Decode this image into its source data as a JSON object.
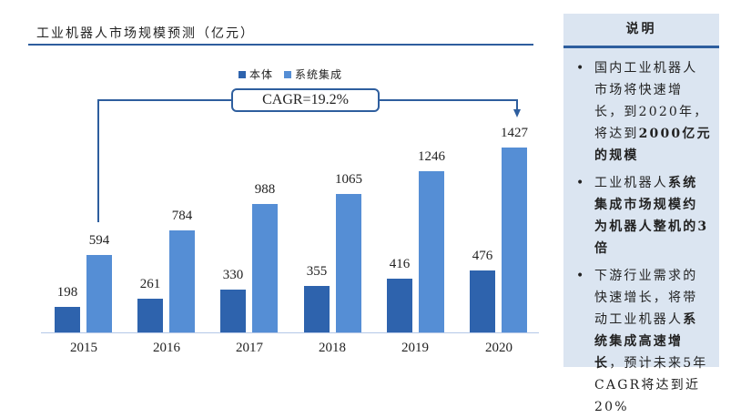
{
  "title": "工业机器人市场规模预测（亿元）",
  "legend": [
    {
      "label": "本体",
      "color": "#2e63ad"
    },
    {
      "label": "系统集成",
      "color": "#558ed5"
    }
  ],
  "cagr_label": "CAGR=19.2%",
  "panel": {
    "heading": "说明",
    "notes": [
      {
        "parts": [
          {
            "t": "国内工业机器人市场将快速增长，到2020年，将达到",
            "b": false
          },
          {
            "t": "2000亿元的规模",
            "b": true
          }
        ]
      },
      {
        "parts": [
          {
            "t": "工业机器人",
            "b": false
          },
          {
            "t": "系统集成市场规模约为机器人整机的3倍",
            "b": true
          }
        ]
      },
      {
        "parts": [
          {
            "t": "下游行业需求的快速增长，将带动工业机器人",
            "b": false
          },
          {
            "t": "系统集成高速增长",
            "b": true
          },
          {
            "t": "，预计未来5年CAGR将达到近20%",
            "b": false
          }
        ]
      }
    ]
  },
  "chart_data": {
    "type": "bar",
    "title": "工业机器人市场规模预测（亿元）",
    "xlabel": "",
    "ylabel": "亿元",
    "categories": [
      "2015",
      "2016",
      "2017",
      "2018",
      "2019",
      "2020"
    ],
    "series": [
      {
        "name": "本体",
        "color": "#2e63ad",
        "values": [
          198,
          261,
          330,
          355,
          416,
          476
        ]
      },
      {
        "name": "系统集成",
        "color": "#558ed5",
        "values": [
          594,
          784,
          988,
          1065,
          1246,
          1427
        ]
      }
    ],
    "annotations": [
      {
        "text": "CAGR=19.2%",
        "from": "2015 系统集成",
        "to": "2020 系统集成"
      }
    ],
    "legend_position": "top",
    "grid": false,
    "ylim": [
      0,
      1500
    ]
  }
}
